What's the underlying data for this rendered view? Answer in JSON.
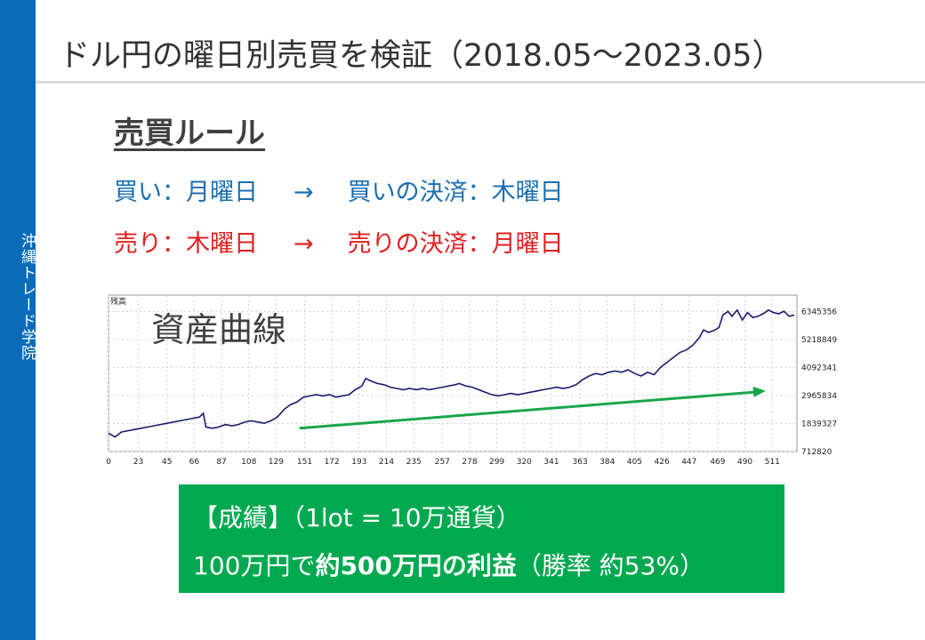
{
  "sidebar": {
    "text": "沖縄トレード学院"
  },
  "title": "ドル円の曜日別売買を検証（2018.05～2023.05）",
  "rules": {
    "heading": "売買ルール",
    "buy": {
      "entry": "買い：月曜日",
      "arrow": "→",
      "exit": "買いの決済：木曜日"
    },
    "sell": {
      "entry": "売り：木曜日",
      "arrow": "→",
      "exit": "売りの決済：月曜日"
    }
  },
  "chart_data": {
    "type": "line",
    "title": "資産曲線",
    "corner_label": "残高",
    "x_ticks": [
      0,
      23,
      45,
      66,
      87,
      108,
      129,
      151,
      172,
      193,
      214,
      235,
      257,
      278,
      299,
      320,
      341,
      363,
      384,
      405,
      426,
      447,
      469,
      490,
      511
    ],
    "y_ticks": [
      712820,
      1839327,
      2965834,
      4092341,
      5218849,
      6345356
    ],
    "xlim": [
      0,
      530
    ],
    "ylim": [
      712820,
      7000000
    ],
    "series": [
      {
        "color": "#1a1a6e",
        "points": [
          [
            0,
            1450000
          ],
          [
            5,
            1300000
          ],
          [
            10,
            1500000
          ],
          [
            15,
            1550000
          ],
          [
            20,
            1600000
          ],
          [
            25,
            1650000
          ],
          [
            30,
            1700000
          ],
          [
            35,
            1750000
          ],
          [
            40,
            1800000
          ],
          [
            45,
            1850000
          ],
          [
            50,
            1900000
          ],
          [
            55,
            1950000
          ],
          [
            60,
            2000000
          ],
          [
            65,
            2050000
          ],
          [
            70,
            2100000
          ],
          [
            73,
            2250000
          ],
          [
            75,
            1700000
          ],
          [
            80,
            1650000
          ],
          [
            85,
            1700000
          ],
          [
            90,
            1800000
          ],
          [
            95,
            1750000
          ],
          [
            100,
            1800000
          ],
          [
            105,
            1900000
          ],
          [
            110,
            1950000
          ],
          [
            115,
            1900000
          ],
          [
            120,
            1850000
          ],
          [
            125,
            1950000
          ],
          [
            130,
            2100000
          ],
          [
            135,
            2400000
          ],
          [
            140,
            2600000
          ],
          [
            145,
            2700000
          ],
          [
            150,
            2900000
          ],
          [
            155,
            2950000
          ],
          [
            160,
            3000000
          ],
          [
            165,
            2950000
          ],
          [
            170,
            3000000
          ],
          [
            175,
            2900000
          ],
          [
            180,
            2950000
          ],
          [
            185,
            3000000
          ],
          [
            190,
            3200000
          ],
          [
            195,
            3350000
          ],
          [
            198,
            3650000
          ],
          [
            202,
            3550000
          ],
          [
            207,
            3450000
          ],
          [
            212,
            3400000
          ],
          [
            217,
            3300000
          ],
          [
            222,
            3250000
          ],
          [
            227,
            3200000
          ],
          [
            232,
            3250000
          ],
          [
            237,
            3200000
          ],
          [
            242,
            3250000
          ],
          [
            247,
            3200000
          ],
          [
            252,
            3250000
          ],
          [
            257,
            3300000
          ],
          [
            262,
            3350000
          ],
          [
            267,
            3400000
          ],
          [
            270,
            3450000
          ],
          [
            275,
            3350000
          ],
          [
            280,
            3300000
          ],
          [
            285,
            3200000
          ],
          [
            290,
            3100000
          ],
          [
            295,
            3000000
          ],
          [
            300,
            2950000
          ],
          [
            305,
            3000000
          ],
          [
            310,
            3050000
          ],
          [
            315,
            3000000
          ],
          [
            320,
            3050000
          ],
          [
            325,
            3100000
          ],
          [
            330,
            3150000
          ],
          [
            335,
            3200000
          ],
          [
            340,
            3250000
          ],
          [
            345,
            3300000
          ],
          [
            350,
            3250000
          ],
          [
            355,
            3300000
          ],
          [
            360,
            3400000
          ],
          [
            365,
            3600000
          ],
          [
            370,
            3750000
          ],
          [
            375,
            3850000
          ],
          [
            380,
            3800000
          ],
          [
            385,
            3900000
          ],
          [
            390,
            3950000
          ],
          [
            395,
            3900000
          ],
          [
            400,
            4000000
          ],
          [
            405,
            3850000
          ],
          [
            410,
            3750000
          ],
          [
            415,
            3900000
          ],
          [
            420,
            3800000
          ],
          [
            425,
            4100000
          ],
          [
            430,
            4300000
          ],
          [
            435,
            4500000
          ],
          [
            440,
            4700000
          ],
          [
            445,
            4800000
          ],
          [
            450,
            5000000
          ],
          [
            455,
            5300000
          ],
          [
            458,
            5600000
          ],
          [
            462,
            5500000
          ],
          [
            467,
            5600000
          ],
          [
            470,
            5700000
          ],
          [
            473,
            6200000
          ],
          [
            477,
            6350000
          ],
          [
            480,
            6150000
          ],
          [
            484,
            6400000
          ],
          [
            488,
            6000000
          ],
          [
            492,
            6300000
          ],
          [
            496,
            6100000
          ],
          [
            500,
            6150000
          ],
          [
            504,
            6250000
          ],
          [
            508,
            6400000
          ],
          [
            512,
            6300000
          ],
          [
            516,
            6250000
          ],
          [
            520,
            6350000
          ],
          [
            524,
            6150000
          ],
          [
            528,
            6200000
          ]
        ]
      }
    ],
    "trend_arrow": {
      "color": "#1aa64a",
      "from": [
        147,
        1650000
      ],
      "to": [
        506,
        3150000
      ]
    },
    "grid": true
  },
  "results": {
    "line1": "【成績】（1lot = 10万通貨）",
    "line2_prefix": "100万円で",
    "line2_bold": "約500万円の利益",
    "line2_suffix": "（勝率 約53%）"
  }
}
